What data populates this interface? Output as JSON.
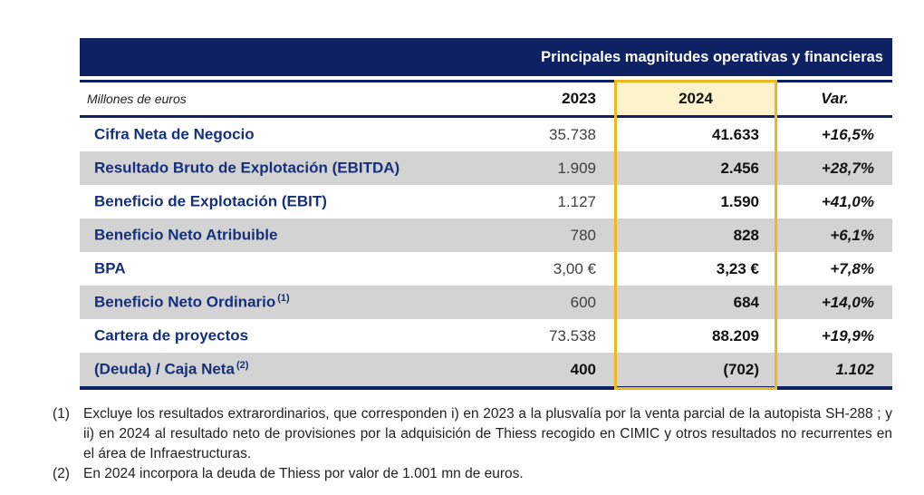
{
  "table": {
    "title": "Principales magnitudes operativas y financieras",
    "unit_label": "Millones de euros",
    "columns": {
      "col1": "2023",
      "col2": "2024",
      "col3": "Var."
    },
    "rows": [
      {
        "label": "Cifra Neta de Negocio",
        "sup": "",
        "y2023": "35.738",
        "y2024": "41.633",
        "var": "+16,5%"
      },
      {
        "label": "Resultado Bruto de Explotación (EBITDA)",
        "sup": "",
        "y2023": "1.909",
        "y2024": "2.456",
        "var": "+28,7%"
      },
      {
        "label": "Beneficio de Explotación (EBIT)",
        "sup": "",
        "y2023": "1.127",
        "y2024": "1.590",
        "var": "+41,0%"
      },
      {
        "label": "Beneficio Neto Atribuible",
        "sup": "",
        "y2023": "780",
        "y2024": "828",
        "var": "+6,1%"
      },
      {
        "label": "BPA",
        "sup": "",
        "y2023": "3,00 €",
        "y2024": "3,23 €",
        "var": "+7,8%"
      },
      {
        "label": "Beneficio Neto Ordinario",
        "sup": "(1)",
        "y2023": "600",
        "y2024": "684",
        "var": "+14,0%"
      },
      {
        "label": "Cartera de proyectos",
        "sup": "",
        "y2023": "73.538",
        "y2024": "88.209",
        "var": "+19,9%"
      },
      {
        "label": "(Deuda) / Caja Neta",
        "sup": "(2)",
        "y2023": "400",
        "y2024": "(702)",
        "var": "1.102"
      }
    ]
  },
  "footnotes": [
    {
      "marker": "(1)",
      "text": "Excluye los resultados extrarordinarios, que corresponden i) en 2023 a la plusvalía por la venta parcial de la autopista SH-288 ; y ii) en 2024 al resultado neto de provisiones por la adquisición de Thiess recogido en CIMIC y otros resultados no recurrentes en el área de Infraestructuras."
    },
    {
      "marker": "(2)",
      "text": "En 2024 incorpora la deuda de Thiess por valor de 1.001 mn de euros."
    }
  ],
  "colors": {
    "navy": "#0E2263",
    "label_blue": "#14307C",
    "highlight_border_gold": "#F2B61F",
    "highlight_fill_cream": "#FCF3CD",
    "row_stripe_gray": "#D3D3D3"
  }
}
